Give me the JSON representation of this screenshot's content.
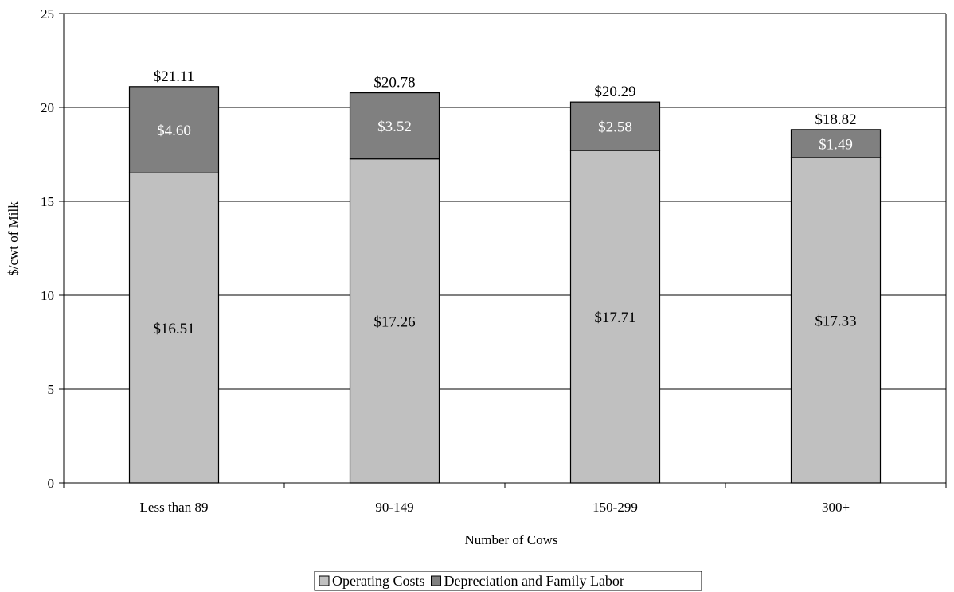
{
  "chart_data": {
    "type": "bar",
    "stacked": true,
    "title": "",
    "xlabel": "Number of Cows",
    "ylabel": "$/cwt of Milk",
    "ylim": [
      0,
      25
    ],
    "yticks": [
      0,
      5,
      10,
      15,
      20,
      25
    ],
    "grid": true,
    "legend_position": "bottom",
    "categories": [
      "Less than 89",
      "90-149",
      "150-299",
      "300+"
    ],
    "series": [
      {
        "name": "Operating Costs",
        "values": [
          16.51,
          17.26,
          17.71,
          17.33
        ],
        "labels": [
          "$16.51",
          "$17.26",
          "$17.71",
          "$17.33"
        ],
        "color": "#c0c0c0",
        "label_color": "#000000"
      },
      {
        "name": "Depreciation and Family Labor",
        "values": [
          4.6,
          3.52,
          2.58,
          1.49
        ],
        "labels": [
          "$4.60",
          "$3.52",
          "$2.58",
          "$1.49"
        ],
        "color": "#808080",
        "label_color": "#ffffff"
      }
    ],
    "totals": [
      21.11,
      20.78,
      20.29,
      18.82
    ],
    "total_labels": [
      "$21.11",
      "$20.78",
      "$20.29",
      "$18.82"
    ]
  }
}
